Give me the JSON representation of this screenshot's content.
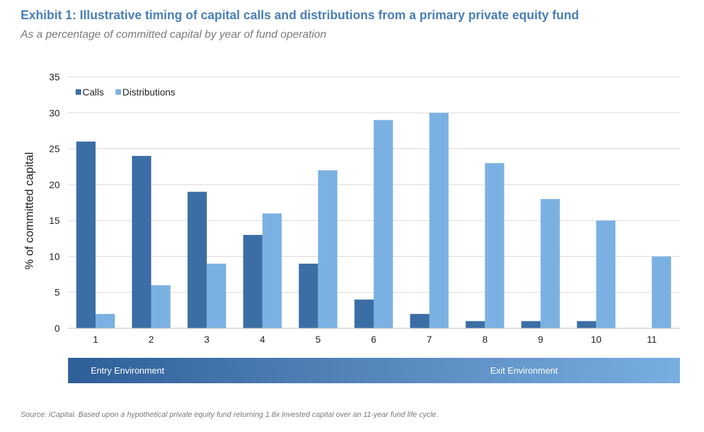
{
  "chart_data": {
    "type": "bar",
    "title": "Exhibit 1: Illustrative timing of capital calls and distributions from a primary private equity fund",
    "subtitle": "As a percentage of committed capital by year of fund operation",
    "xlabel": "",
    "ylabel": "% of committed capital",
    "ylim": [
      0,
      35
    ],
    "yticks": [
      0,
      5,
      10,
      15,
      20,
      25,
      30,
      35
    ],
    "grid": true,
    "legend_position": "top-left",
    "categories": [
      "1",
      "2",
      "3",
      "4",
      "5",
      "6",
      "7",
      "8",
      "9",
      "10",
      "11"
    ],
    "series": [
      {
        "name": "Calls",
        "color": "#3b6ea5",
        "values": [
          26,
          24,
          19,
          13,
          9,
          4,
          2,
          1,
          1,
          1,
          0
        ]
      },
      {
        "name": "Distributions",
        "color": "#7bb1e2",
        "values": [
          2,
          6,
          9,
          16,
          22,
          29,
          30,
          23,
          18,
          15,
          10
        ]
      }
    ]
  },
  "environment": {
    "entry_label": "Entry Environment",
    "exit_label": "Exit Environment"
  },
  "source": "Source: iCapital. Based upon a hypothetical private equity fund returning 1.8x invested capital over an 11-year fund life cycle."
}
